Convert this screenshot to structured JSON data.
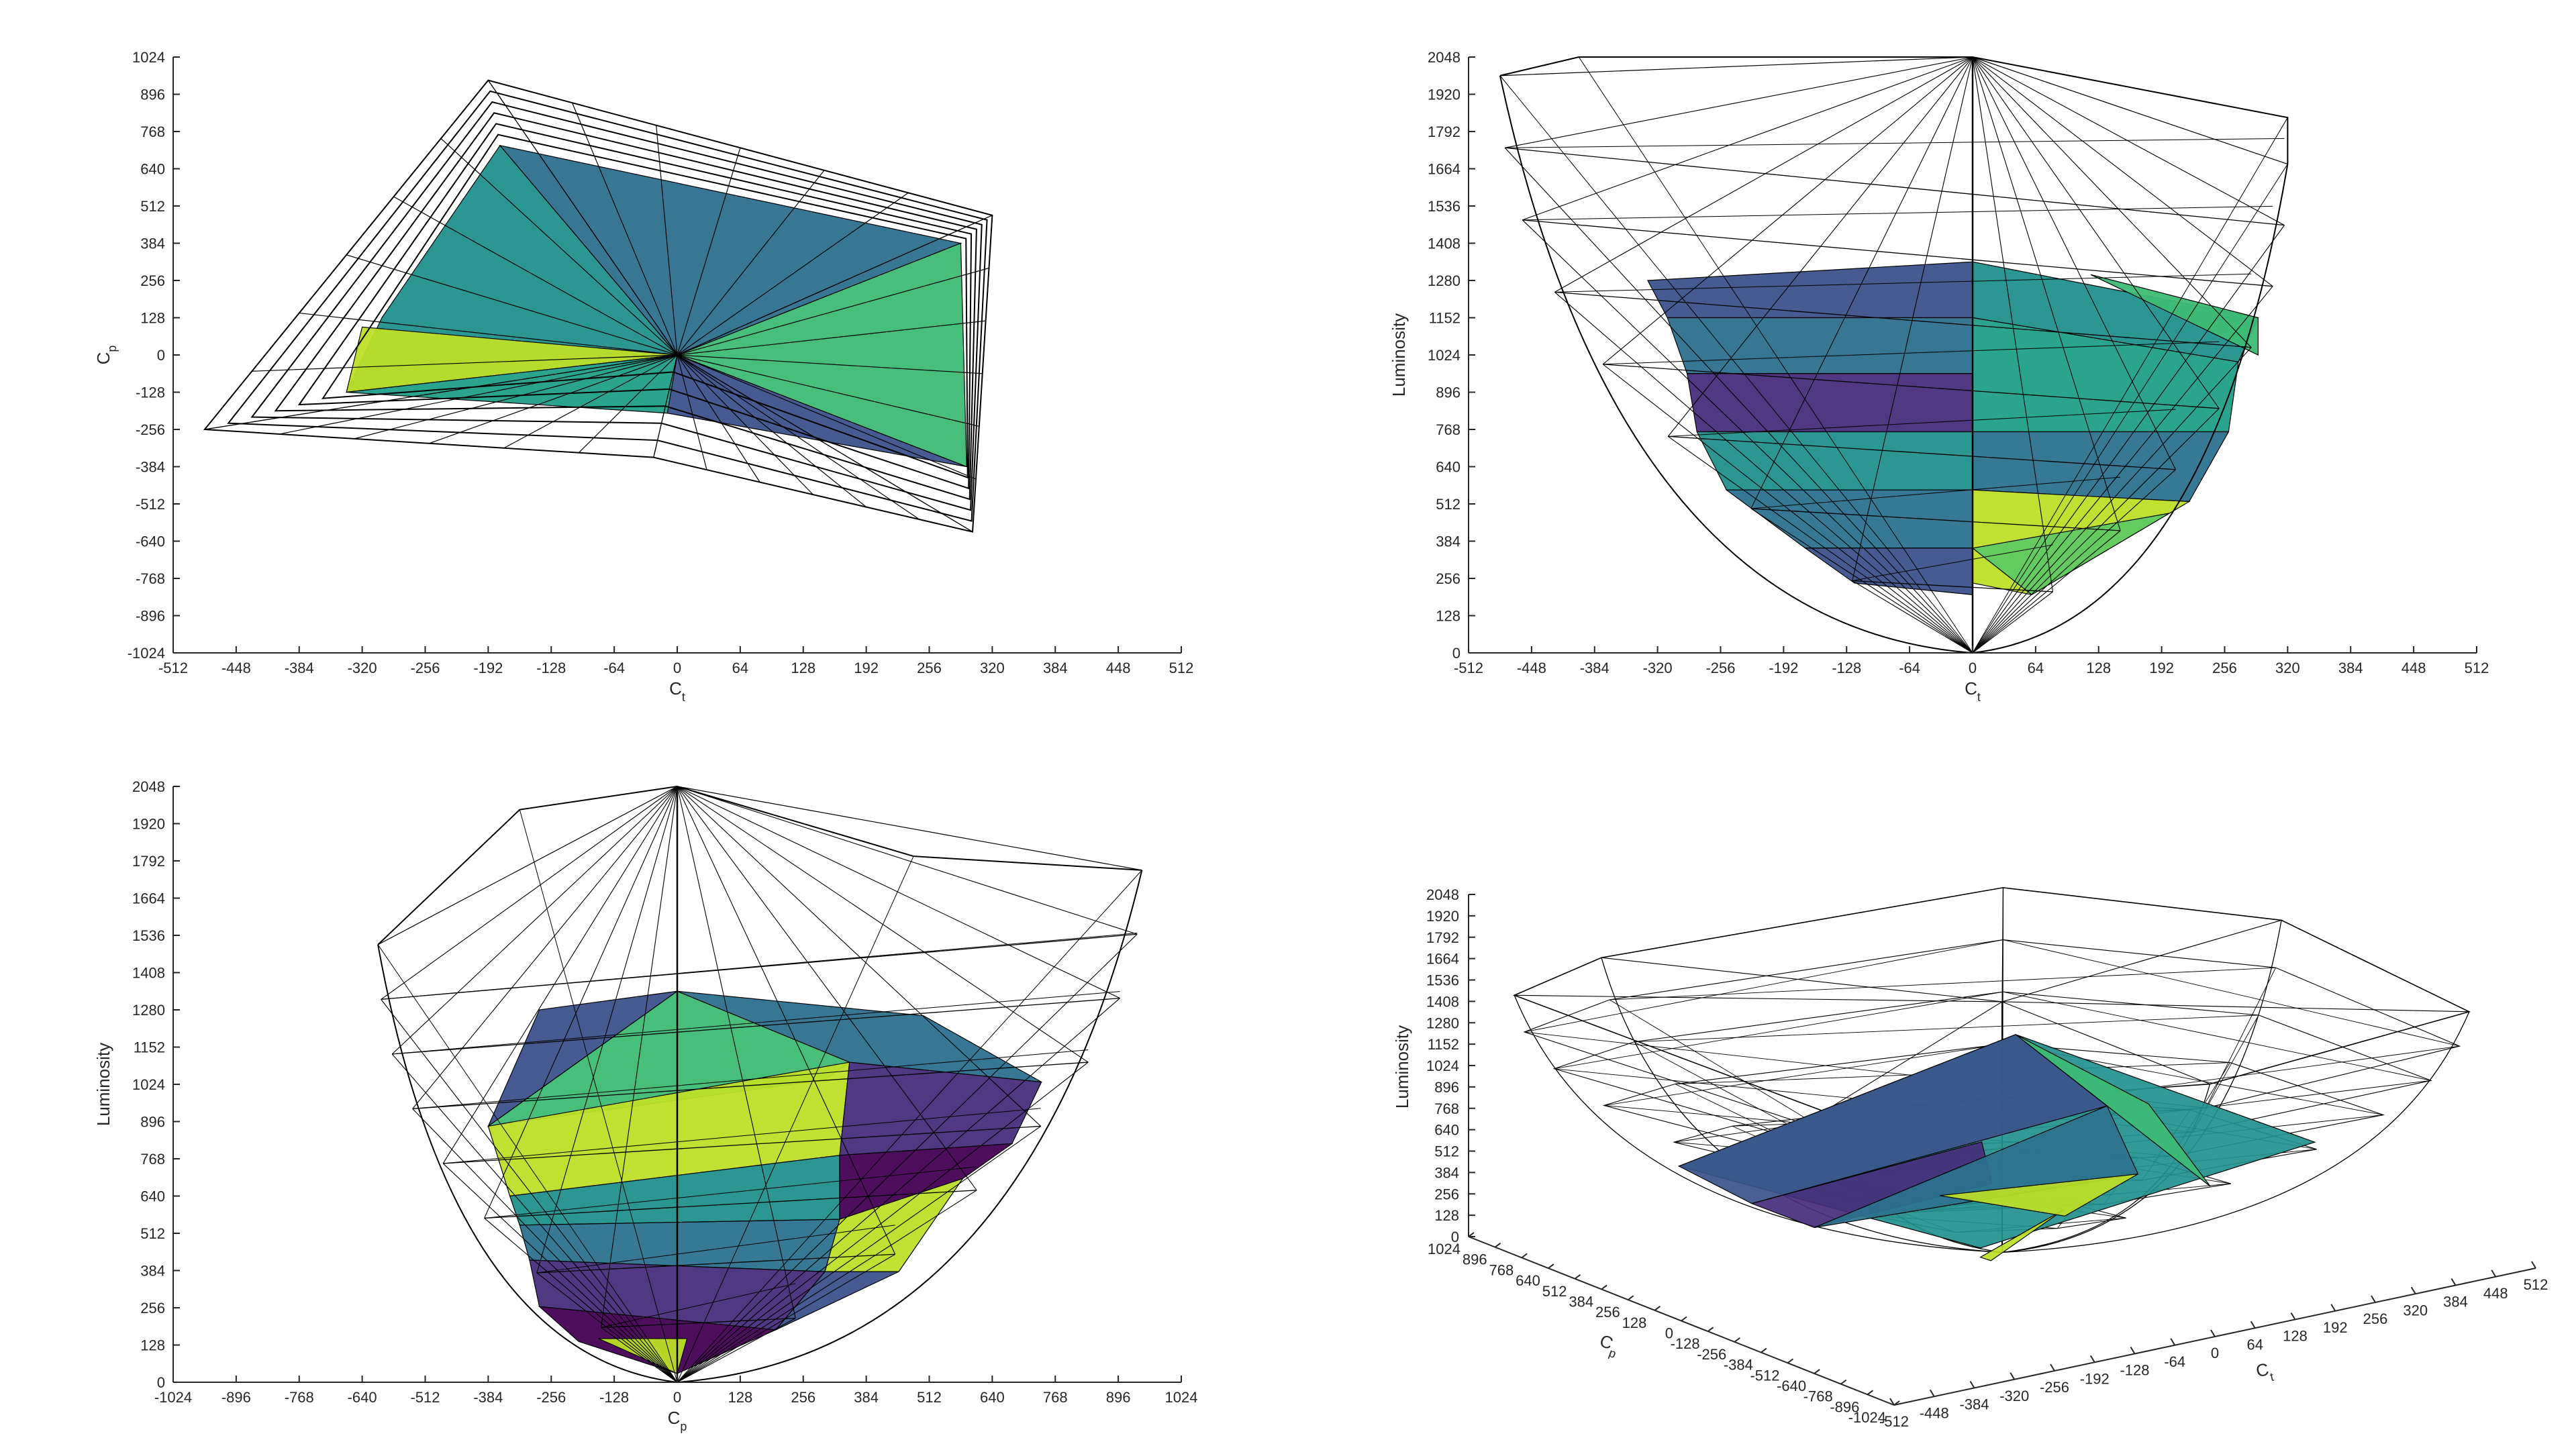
{
  "chart_data": [
    {
      "type": "surface3d",
      "view": "top (Ct vs Cp)",
      "xlabel": "C",
      "xlabel_sub": "t",
      "ylabel": "C",
      "ylabel_sub": "p",
      "xlim": [
        -512,
        512
      ],
      "ylim": [
        -1024,
        1024
      ],
      "xticks": [
        "-512",
        "-448",
        "-384",
        "-320",
        "-256",
        "-192",
        "-128",
        "-64",
        "0",
        "64",
        "128",
        "192",
        "256",
        "320",
        "384",
        "448",
        "512"
      ],
      "yticks": [
        "-1024",
        "-896",
        "-768",
        "-640",
        "-512",
        "-384",
        "-256",
        "-128",
        "0",
        "128",
        "256",
        "384",
        "512",
        "640",
        "768",
        "896",
        "1024"
      ],
      "wire_outline": [
        [
          -480,
          -256
        ],
        [
          -192,
          944
        ],
        [
          320,
          480
        ],
        [
          300,
          -608
        ],
        [
          -24,
          -352
        ]
      ],
      "inner_outline": [
        [
          -336,
          -128
        ],
        [
          -180,
          720
        ],
        [
          288,
          384
        ],
        [
          294,
          -384
        ],
        [
          0,
          0
        ]
      ],
      "wire_apex": [
        0,
        0
      ],
      "faces": [
        {
          "color": "#21908d",
          "points": [
            [
              -180,
              720
            ],
            [
              0,
              0
            ],
            [
              -336,
              -128
            ],
            [
              -300,
              128
            ]
          ]
        },
        {
          "color": "#2d708e",
          "points": [
            [
              -180,
              720
            ],
            [
              288,
              384
            ],
            [
              0,
              0
            ]
          ]
        },
        {
          "color": "#3dbc74",
          "points": [
            [
              0,
              0
            ],
            [
              288,
              384
            ],
            [
              294,
              -384
            ]
          ]
        },
        {
          "color": "#bddf26",
          "points": [
            [
              -336,
              -128
            ],
            [
              0,
              0
            ],
            [
              -320,
              96
            ]
          ]
        },
        {
          "color": "#3b528b",
          "points": [
            [
              0,
              0
            ],
            [
              294,
              -384
            ],
            [
              -10,
              -200
            ]
          ]
        },
        {
          "color": "#1f9e89",
          "points": [
            [
              -336,
              -128
            ],
            [
              0,
              0
            ],
            [
              -10,
              -200
            ]
          ]
        }
      ]
    },
    {
      "type": "surface3d",
      "view": "front (Ct vs Luminosity)",
      "xlabel": "C",
      "xlabel_sub": "t",
      "ylabel": "Luminosity",
      "xlim": [
        -512,
        512
      ],
      "ylim": [
        0,
        2048
      ],
      "xticks": [
        "-512",
        "-448",
        "-384",
        "-320",
        "-256",
        "-192",
        "-128",
        "-64",
        "0",
        "64",
        "128",
        "192",
        "256",
        "320",
        "384",
        "448",
        "512"
      ],
      "yticks": [
        "0",
        "128",
        "256",
        "384",
        "512",
        "640",
        "768",
        "896",
        "1024",
        "1152",
        "1280",
        "1408",
        "1536",
        "1664",
        "1792",
        "1920",
        "2048"
      ],
      "wire_top": [
        [
          -480,
          1984
        ],
        [
          -400,
          2048
        ],
        [
          0,
          2048
        ],
        [
          320,
          1840
        ],
        [
          320,
          1680
        ]
      ],
      "wire_apex": [
        0,
        0
      ],
      "wire_pole_top": [
        0,
        2048
      ],
      "faces": [
        {
          "color": "#3b528b",
          "points": [
            [
              -330,
              1280
            ],
            [
              0,
              1344
            ],
            [
              0,
              1152
            ],
            [
              -310,
              1152
            ]
          ]
        },
        {
          "color": "#2d708e",
          "points": [
            [
              -310,
              1152
            ],
            [
              0,
              1152
            ],
            [
              0,
              960
            ],
            [
              -290,
              960
            ]
          ]
        },
        {
          "color": "#472d7b",
          "points": [
            [
              -290,
              960
            ],
            [
              0,
              960
            ],
            [
              0,
              760
            ],
            [
              -280,
              760
            ]
          ]
        },
        {
          "color": "#21908d",
          "points": [
            [
              -280,
              760
            ],
            [
              0,
              760
            ],
            [
              0,
              560
            ],
            [
              -250,
              560
            ]
          ]
        },
        {
          "color": "#2c728e",
          "points": [
            [
              -250,
              560
            ],
            [
              0,
              560
            ],
            [
              0,
              360
            ],
            [
              -170,
              360
            ]
          ]
        },
        {
          "color": "#3b528b",
          "points": [
            [
              -170,
              360
            ],
            [
              0,
              360
            ],
            [
              0,
              200
            ],
            [
              -120,
              240
            ]
          ]
        },
        {
          "color": "#21908d",
          "points": [
            [
              0,
              1344
            ],
            [
              290,
              1152
            ],
            [
              270,
              1000
            ],
            [
              0,
              1152
            ]
          ]
        },
        {
          "color": "#3dbc74",
          "points": [
            [
              120,
              1300
            ],
            [
              290,
              1152
            ],
            [
              290,
              1024
            ]
          ]
        },
        {
          "color": "#1f9e89",
          "points": [
            [
              0,
              1152
            ],
            [
              270,
              1000
            ],
            [
              260,
              760
            ],
            [
              0,
              760
            ]
          ]
        },
        {
          "color": "#2c728e",
          "points": [
            [
              0,
              760
            ],
            [
              260,
              760
            ],
            [
              220,
              520
            ],
            [
              0,
              560
            ]
          ]
        },
        {
          "color": "#bddf26",
          "points": [
            [
              0,
              560
            ],
            [
              220,
              520
            ],
            [
              60,
              200
            ],
            [
              0,
              240
            ]
          ]
        },
        {
          "color": "#5ec962",
          "points": [
            [
              0,
              360
            ],
            [
              200,
              480
            ],
            [
              60,
              200
            ]
          ]
        }
      ]
    },
    {
      "type": "surface3d",
      "view": "side (Cp vs Luminosity)",
      "xlabel": "C",
      "xlabel_sub": "p",
      "ylabel": "Luminosity",
      "xlim": [
        -1024,
        1024
      ],
      "ylim": [
        0,
        2048
      ],
      "xticks": [
        "-1024",
        "-896",
        "-768",
        "-640",
        "-512",
        "-384",
        "-256",
        "-128",
        "0",
        "128",
        "256",
        "384",
        "512",
        "640",
        "768",
        "896",
        "1024"
      ],
      "yticks": [
        "0",
        "128",
        "256",
        "384",
        "512",
        "640",
        "768",
        "896",
        "1024",
        "1152",
        "1280",
        "1408",
        "1536",
        "1664",
        "1792",
        "1920",
        "2048"
      ],
      "wire_top": [
        [
          -608,
          1504
        ],
        [
          -320,
          1968
        ],
        [
          0,
          2048
        ],
        [
          480,
          1808
        ],
        [
          944,
          1760
        ]
      ],
      "wire_apex": [
        0,
        0
      ],
      "wire_pole_top": [
        0,
        2048
      ],
      "faces": [
        {
          "color": "#3b528b",
          "points": [
            [
              -384,
              880
            ],
            [
              0,
              1344
            ],
            [
              -280,
              1280
            ]
          ]
        },
        {
          "color": "#3dbc74",
          "points": [
            [
              -384,
              880
            ],
            [
              0,
              1344
            ],
            [
              350,
              1100
            ],
            [
              300,
              1040
            ]
          ]
        },
        {
          "color": "#bddf26",
          "points": [
            [
              -384,
              880
            ],
            [
              350,
              1100
            ],
            [
              330,
              780
            ],
            [
              -340,
              640
            ]
          ]
        },
        {
          "color": "#21908d",
          "points": [
            [
              -340,
              640
            ],
            [
              330,
              780
            ],
            [
              330,
              560
            ],
            [
              -320,
              540
            ]
          ]
        },
        {
          "color": "#2c728e",
          "points": [
            [
              -320,
              540
            ],
            [
              330,
              560
            ],
            [
              300,
              380
            ],
            [
              -300,
              420
            ]
          ]
        },
        {
          "color": "#472d7b",
          "points": [
            [
              -300,
              420
            ],
            [
              300,
              380
            ],
            [
              200,
              180
            ],
            [
              -280,
              260
            ]
          ]
        },
        {
          "color": "#440154",
          "points": [
            [
              -280,
              260
            ],
            [
              200,
              180
            ],
            [
              0,
              30
            ],
            [
              -200,
              140
            ]
          ]
        },
        {
          "color": "#bddf26",
          "points": [
            [
              -160,
              150
            ],
            [
              0,
              30
            ],
            [
              20,
              150
            ]
          ]
        },
        {
          "color": "#472d7b",
          "points": [
            [
              350,
              1100
            ],
            [
              740,
              1032
            ],
            [
              680,
              820
            ],
            [
              330,
              780
            ]
          ]
        },
        {
          "color": "#440154",
          "points": [
            [
              330,
              780
            ],
            [
              680,
              820
            ],
            [
              580,
              700
            ],
            [
              330,
              560
            ]
          ]
        },
        {
          "color": "#bddf26",
          "points": [
            [
              330,
              560
            ],
            [
              580,
              700
            ],
            [
              450,
              380
            ],
            [
              300,
              380
            ]
          ]
        },
        {
          "color": "#3b528b",
          "points": [
            [
              300,
              380
            ],
            [
              450,
              380
            ],
            [
              200,
              180
            ]
          ]
        },
        {
          "color": "#2d708e",
          "points": [
            [
              0,
              1344
            ],
            [
              500,
              1260
            ],
            [
              740,
              1032
            ],
            [
              350,
              1100
            ]
          ]
        }
      ]
    },
    {
      "type": "surface3d",
      "view": "isometric",
      "xlabel": "C",
      "xlabel_sub": "t",
      "ylabel": "C",
      "ylabel_sub": "p",
      "zlabel": "Luminosity",
      "xlim": [
        -512,
        512
      ],
      "ylim": [
        -1024,
        1024
      ],
      "zlim": [
        0,
        2048
      ],
      "xticks": [
        "-512",
        "-448",
        "-384",
        "-320",
        "-256",
        "-192",
        "-128",
        "-64",
        "0",
        "64",
        "128",
        "192",
        "256",
        "320",
        "384",
        "448",
        "512"
      ],
      "yticks": [
        "1024",
        "896",
        "768",
        "640",
        "512",
        "384",
        "256",
        "128",
        "0",
        "-128",
        "-256",
        "-384",
        "-512",
        "-640",
        "-768",
        "-896",
        "-1024"
      ],
      "zticks": [
        "0",
        "128",
        "256",
        "384",
        "512",
        "640",
        "768",
        "896",
        "1024",
        "1152",
        "1280",
        "1408",
        "1536",
        "1664",
        "1792",
        "1920",
        "2048"
      ],
      "faces": [
        {
          "color": "#21908d",
          "points": [
            [
              -300,
              -800,
              1200
            ],
            [
              300,
              -600,
              1300
            ],
            [
              320,
              900,
              1100
            ],
            [
              -350,
              500,
              1000
            ]
          ]
        },
        {
          "color": "#3dbc74",
          "points": [
            [
              100,
              -700,
              1200
            ],
            [
              320,
              900,
              1100
            ],
            [
              300,
              200,
              1000
            ]
          ]
        },
        {
          "color": "#bddf26",
          "points": [
            [
              -300,
              -800,
              1100
            ],
            [
              -100,
              -600,
              1150
            ],
            [
              -250,
              -700,
              900
            ]
          ]
        },
        {
          "color": "#3b528b",
          "points": [
            [
              -350,
              500,
              1000
            ],
            [
              320,
              900,
              1100
            ],
            [
              300,
              400,
              800
            ],
            [
              -300,
              300,
              700
            ]
          ]
        },
        {
          "color": "#472d7b",
          "points": [
            [
              -300,
              300,
              700
            ],
            [
              100,
              400,
              700
            ],
            [
              50,
              200,
              500
            ],
            [
              -250,
              150,
              500
            ]
          ]
        },
        {
          "color": "#2c728e",
          "points": [
            [
              -250,
              150,
              500
            ],
            [
              300,
              400,
              800
            ],
            [
              250,
              100,
              400
            ]
          ]
        },
        {
          "color": "#bddf26",
          "points": [
            [
              0,
              300,
              350
            ],
            [
              250,
              100,
              400
            ],
            [
              100,
              0,
              250
            ]
          ]
        }
      ]
    }
  ]
}
